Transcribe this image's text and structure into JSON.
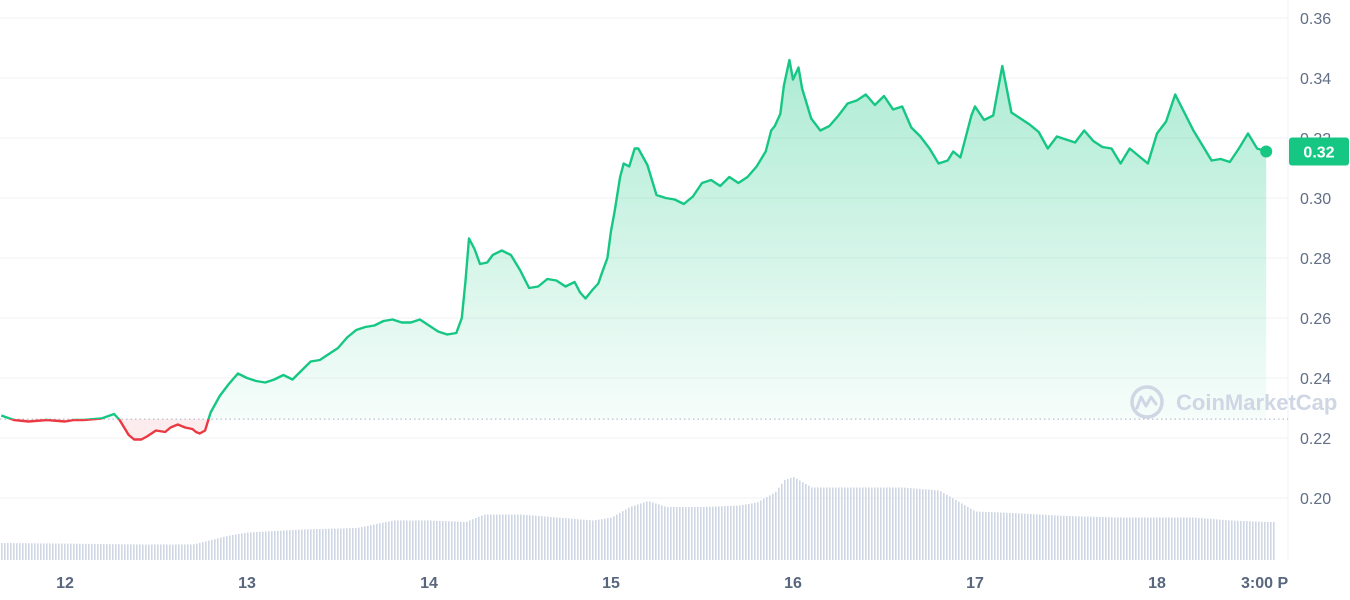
{
  "chart_data": {
    "type": "line",
    "title": "",
    "xlabel": "",
    "ylabel": "",
    "ylim": [
      0.18,
      0.36
    ],
    "y_ticks": [
      "0.20",
      "0.22",
      "0.24",
      "0.26",
      "0.28",
      "0.30",
      "0.32",
      "0.34",
      "0.36"
    ],
    "x_ticks": [
      "12",
      "13",
      "14",
      "15",
      "16",
      "17",
      "18",
      "3:00 P"
    ],
    "baseline": 0.2263,
    "current_price_label": "0.32",
    "grid": true,
    "colors": {
      "up": "#16c784",
      "down": "#ea3943",
      "volume": "#cfd6e4",
      "badge": "#16c784",
      "grid": "#eff2f5"
    },
    "series": [
      {
        "x": [
          11.65,
          11.72,
          11.8,
          11.9,
          12.0,
          12.05,
          12.1,
          12.2,
          12.27,
          12.3,
          12.35,
          12.38,
          12.42,
          12.45,
          12.5,
          12.55,
          12.58,
          12.62,
          12.66,
          12.7,
          12.72,
          12.74,
          12.77,
          12.8,
          12.85,
          12.9,
          12.95,
          13.0,
          13.05,
          13.1,
          13.15,
          13.2,
          13.25,
          13.3,
          13.35,
          13.4,
          13.45,
          13.5,
          13.55,
          13.6,
          13.65,
          13.7,
          13.75,
          13.8,
          13.85,
          13.9,
          13.95,
          14.0,
          14.05,
          14.1,
          14.15,
          14.18,
          14.2,
          14.22,
          14.25,
          14.28,
          14.32,
          14.35,
          14.4,
          14.45,
          14.5,
          14.55,
          14.6,
          14.65,
          14.7,
          14.75,
          14.8,
          14.83,
          14.86,
          14.9,
          14.93,
          14.95,
          14.98,
          15.0,
          15.02,
          15.05,
          15.07,
          15.1,
          15.13,
          15.15,
          15.2,
          15.25,
          15.3,
          15.35,
          15.4,
          15.45,
          15.5,
          15.55,
          15.6,
          15.65,
          15.7,
          15.75,
          15.8,
          15.85,
          15.88,
          15.9,
          15.93,
          15.95,
          15.98,
          16.0,
          16.03,
          16.05,
          16.1,
          16.15,
          16.2,
          16.25,
          16.3,
          16.35,
          16.4,
          16.45,
          16.5,
          16.55,
          16.6,
          16.65,
          16.7,
          16.75,
          16.8,
          16.85,
          16.88,
          16.92,
          16.95,
          16.98,
          17.0,
          17.05,
          17.1,
          17.15,
          17.2,
          17.25,
          17.3,
          17.35,
          17.4,
          17.45,
          17.5,
          17.55,
          17.6,
          17.65,
          17.7,
          17.75,
          17.8,
          17.85,
          17.9,
          17.95,
          18.0,
          18.05,
          18.1,
          18.15,
          18.2,
          18.25,
          18.3,
          18.35,
          18.4,
          18.45,
          18.5,
          18.55,
          18.6
        ],
        "values": [
          0.2275,
          0.226,
          0.2255,
          0.226,
          0.2255,
          0.226,
          0.226,
          0.2265,
          0.228,
          0.226,
          0.221,
          0.2195,
          0.2195,
          0.2205,
          0.2225,
          0.222,
          0.2235,
          0.2245,
          0.2235,
          0.223,
          0.222,
          0.2215,
          0.2225,
          0.2285,
          0.234,
          0.238,
          0.2415,
          0.24,
          0.239,
          0.2385,
          0.2395,
          0.241,
          0.2395,
          0.2425,
          0.2455,
          0.246,
          0.248,
          0.25,
          0.2535,
          0.256,
          0.257,
          0.2575,
          0.259,
          0.2595,
          0.2585,
          0.2585,
          0.2595,
          0.2575,
          0.2555,
          0.2545,
          0.255,
          0.26,
          0.272,
          0.2865,
          0.283,
          0.278,
          0.2785,
          0.281,
          0.2825,
          0.281,
          0.276,
          0.27,
          0.2705,
          0.273,
          0.2725,
          0.2705,
          0.272,
          0.2685,
          0.2665,
          0.2695,
          0.2715,
          0.275,
          0.28,
          0.289,
          0.2955,
          0.307,
          0.3115,
          0.3105,
          0.3165,
          0.3165,
          0.311,
          0.301,
          0.3,
          0.2995,
          0.298,
          0.3005,
          0.305,
          0.306,
          0.304,
          0.307,
          0.305,
          0.307,
          0.3105,
          0.3155,
          0.3225,
          0.324,
          0.328,
          0.3375,
          0.346,
          0.3395,
          0.3435,
          0.3365,
          0.3265,
          0.3225,
          0.324,
          0.3275,
          0.3315,
          0.3325,
          0.3345,
          0.331,
          0.334,
          0.3295,
          0.3305,
          0.3235,
          0.3205,
          0.3165,
          0.3115,
          0.3125,
          0.3155,
          0.3135,
          0.3205,
          0.3275,
          0.3305,
          0.326,
          0.3275,
          0.344,
          0.3285,
          0.3265,
          0.3245,
          0.322,
          0.3165,
          0.3205,
          0.3195,
          0.3185,
          0.3225,
          0.319,
          0.317,
          0.3165,
          0.3115,
          0.3165,
          0.314,
          0.3115,
          0.3215,
          0.3255,
          0.3345,
          0.3285,
          0.3225,
          0.3175,
          0.3125,
          0.313,
          0.312,
          0.3165,
          0.3215,
          0.3165,
          0.3155
        ]
      }
    ],
    "volume": {
      "x": [
        11.65,
        12.0,
        12.4,
        12.7,
        12.8,
        12.9,
        13.0,
        13.3,
        13.6,
        13.8,
        14.0,
        14.2,
        14.3,
        14.5,
        14.7,
        14.9,
        15.0,
        15.1,
        15.2,
        15.3,
        15.5,
        15.7,
        15.8,
        15.9,
        15.95,
        16.0,
        16.1,
        16.3,
        16.6,
        16.8,
        16.9,
        17.0,
        17.2,
        17.5,
        17.8,
        18.0,
        18.2,
        18.4,
        18.6
      ],
      "values": [
        0.185,
        0.1848,
        0.1845,
        0.1845,
        0.186,
        0.1875,
        0.1885,
        0.1895,
        0.19,
        0.1925,
        0.1925,
        0.192,
        0.1945,
        0.1945,
        0.1935,
        0.1925,
        0.1935,
        0.197,
        0.199,
        0.197,
        0.197,
        0.1975,
        0.1985,
        0.202,
        0.206,
        0.207,
        0.2035,
        0.2035,
        0.2035,
        0.2025,
        0.199,
        0.1955,
        0.195,
        0.194,
        0.1935,
        0.1935,
        0.1935,
        0.1925,
        0.192
      ]
    }
  },
  "watermark": {
    "text": "CoinMarketCap",
    "icon": "coinmarketcap-logo-icon"
  }
}
